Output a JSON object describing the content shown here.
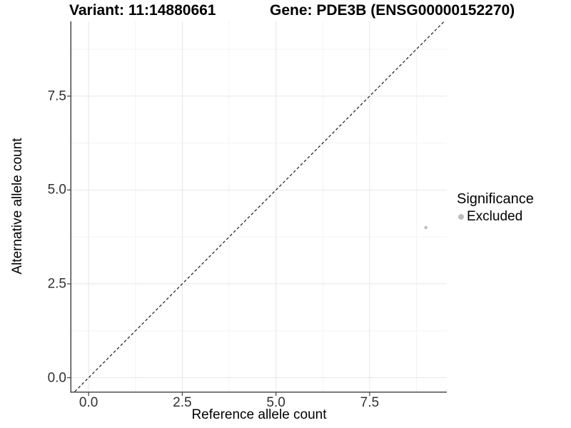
{
  "titles": {
    "variant": "Variant: 11:14880661",
    "gene": "Gene: PDE3B (ENSG00000152270)"
  },
  "chart_data": {
    "type": "scatter",
    "title_left": "Variant: 11:14880661",
    "title_right": "Gene: PDE3B (ENSG00000152270)",
    "xlabel": "Reference allele count",
    "ylabel": "Alternative allele count",
    "xlim": [
      -0.46,
      9.56
    ],
    "ylim": [
      -0.37,
      9.49
    ],
    "x_ticks": [
      0,
      2.5,
      5,
      7.5
    ],
    "x_tick_labels": [
      "0.0",
      "2.5",
      "5.0",
      "7.5"
    ],
    "y_ticks": [
      0,
      2.5,
      5,
      7.5
    ],
    "y_tick_labels": [
      "0.0",
      "2.5",
      "5.0",
      "7.5"
    ],
    "x_minor_ticks": [
      1.25,
      3.75,
      6.25,
      8.75
    ],
    "y_minor_ticks": [
      1.25,
      3.75,
      6.25,
      8.75
    ],
    "grid": {
      "major_color": "#e7e7e7",
      "minor_color": "#f3f3f3",
      "visible": true
    },
    "axis_color": "#3d3d3d",
    "tick_label_color": "#303030",
    "reference_line": {
      "type": "identity",
      "intercept": 0,
      "slope": 1,
      "style": "dashed",
      "color": "#1a1a1a"
    },
    "series": [
      {
        "name": "Excluded",
        "color": "#c0c0c0",
        "point_radius": 2.3,
        "points": [
          {
            "x": 9,
            "y": 4
          }
        ]
      }
    ],
    "legend": {
      "title": "Significance",
      "position": "right",
      "items": [
        {
          "label": "Excluded",
          "color": "#bdbdbd"
        }
      ]
    }
  }
}
